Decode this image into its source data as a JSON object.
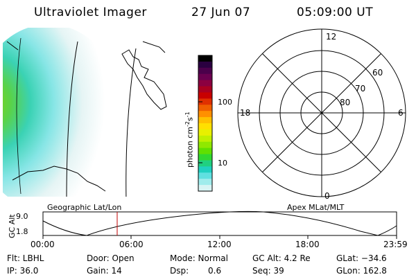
{
  "header": {
    "instrument": "Ultraviolet Imager",
    "date": "27 Jun 07",
    "time": "05:09:00 UT"
  },
  "colorbar": {
    "unit_label": "photon cm",
    "unit_exp1": "-2",
    "unit_mid": "s",
    "unit_exp2": "-1",
    "ticks": [
      "100",
      "10"
    ],
    "colors": [
      "#000000",
      "#2a0040",
      "#4b004b",
      "#6b0050",
      "#8b0040",
      "#aa0020",
      "#c80000",
      "#e03000",
      "#f06000",
      "#ff9000",
      "#ffc000",
      "#ffe000",
      "#e8f000",
      "#c0f000",
      "#90e800",
      "#60e000",
      "#30d830",
      "#20d080",
      "#20d0c0",
      "#60e0e0",
      "#a0ecec",
      "#d8f4f4"
    ]
  },
  "polar": {
    "mlt_labels": {
      "top": "12",
      "left": "18",
      "right": "6",
      "bottom": "0"
    },
    "lat_labels": [
      "60",
      "70",
      "80"
    ]
  },
  "altitude_plot": {
    "ylabel": "GC Alt",
    "ymax": "9.0",
    "ymin": "1.8",
    "left_title": "Geographic Lat/Lon",
    "right_title": "Apex MLat/MLT",
    "xticks": [
      "00:00",
      "06:00",
      "12:00",
      "18:00",
      "23:59"
    ]
  },
  "info": {
    "flt": "Flt: LBHL",
    "ip": "IP: 36.0",
    "door": "Door: Open",
    "gain": "Gain: 14",
    "mode": "Mode: Normal",
    "dsp_label": "Dsp:",
    "dsp_value": "0.6",
    "gcalt": "GC Alt: 4.2 Re",
    "seq": "Seq: 39",
    "glat": "GLat: −34.6",
    "glon": "GLon: 162.8"
  }
}
